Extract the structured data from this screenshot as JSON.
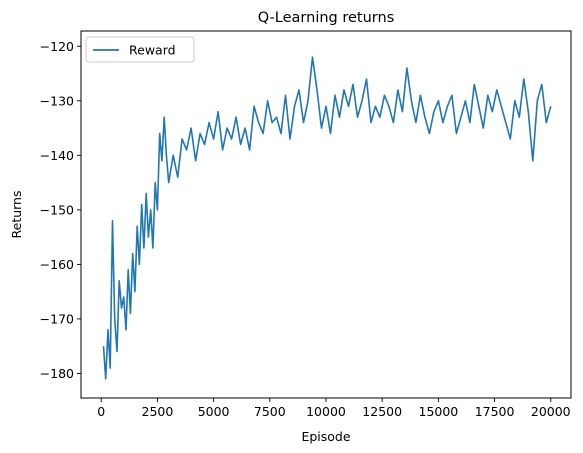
{
  "chart_data": {
    "type": "line",
    "title": "Q-Learning returns",
    "xlabel": "Episode",
    "ylabel": "Returns",
    "xlim": [
      -900,
      20900
    ],
    "ylim": [
      -184.5,
      -117.2
    ],
    "xticks": [
      0,
      2500,
      5000,
      7500,
      10000,
      12500,
      15000,
      17500,
      20000
    ],
    "yticks": [
      -180,
      -170,
      -160,
      -150,
      -140,
      -130,
      -120
    ],
    "grid": false,
    "legend": {
      "placement": "top-left"
    },
    "series": [
      {
        "name": "Reward",
        "color": "#1f77b4",
        "x": [
          100,
          200,
          300,
          400,
          500,
          600,
          700,
          800,
          900,
          1000,
          1100,
          1200,
          1300,
          1400,
          1500,
          1600,
          1700,
          1800,
          1900,
          2000,
          2100,
          2200,
          2300,
          2400,
          2500,
          2600,
          2700,
          2800,
          2900,
          3000,
          3200,
          3400,
          3600,
          3800,
          4000,
          4200,
          4400,
          4600,
          4800,
          5000,
          5200,
          5400,
          5600,
          5800,
          6000,
          6200,
          6400,
          6600,
          6800,
          7000,
          7200,
          7400,
          7600,
          7800,
          8000,
          8200,
          8400,
          8600,
          8800,
          9000,
          9200,
          9400,
          9600,
          9800,
          10000,
          10200,
          10400,
          10600,
          10800,
          11000,
          11200,
          11400,
          11600,
          11800,
          12000,
          12200,
          12400,
          12600,
          12800,
          13000,
          13200,
          13400,
          13600,
          13800,
          14000,
          14200,
          14400,
          14600,
          14800,
          15000,
          15200,
          15400,
          15600,
          15800,
          16000,
          16200,
          16400,
          16600,
          16800,
          17000,
          17200,
          17400,
          17600,
          17800,
          18000,
          18200,
          18400,
          18600,
          18800,
          19000,
          19200,
          19400,
          19600,
          19800,
          20000
        ],
        "values": [
          -175,
          -181,
          -172,
          -179,
          -152,
          -170,
          -176,
          -163,
          -168,
          -166,
          -172,
          -161,
          -169,
          -158,
          -165,
          -153,
          -160,
          -149,
          -157,
          -147,
          -155,
          -150,
          -157,
          -145,
          -150,
          -136,
          -141,
          -133,
          -140,
          -145,
          -140,
          -144,
          -137,
          -139,
          -135,
          -141,
          -136,
          -138,
          -134,
          -137,
          -132,
          -139,
          -135,
          -137,
          -133,
          -138,
          -135,
          -139,
          -131,
          -134,
          -136,
          -130,
          -134,
          -133,
          -136,
          -129,
          -137,
          -131,
          -128,
          -134,
          -130,
          -122,
          -128,
          -135,
          -131,
          -136,
          -129,
          -133,
          -128,
          -131,
          -127,
          -133,
          -130,
          -126,
          -134,
          -131,
          -133,
          -129,
          -131,
          -134,
          -128,
          -132,
          -124,
          -130,
          -134,
          -129,
          -133,
          -136,
          -132,
          -130,
          -134,
          -131,
          -129,
          -136,
          -133,
          -130,
          -134,
          -127,
          -131,
          -135,
          -129,
          -132,
          -128,
          -131,
          -134,
          -137,
          -130,
          -133,
          -126,
          -132,
          -141,
          -130,
          -127,
          -134,
          -131
        ]
      }
    ]
  }
}
